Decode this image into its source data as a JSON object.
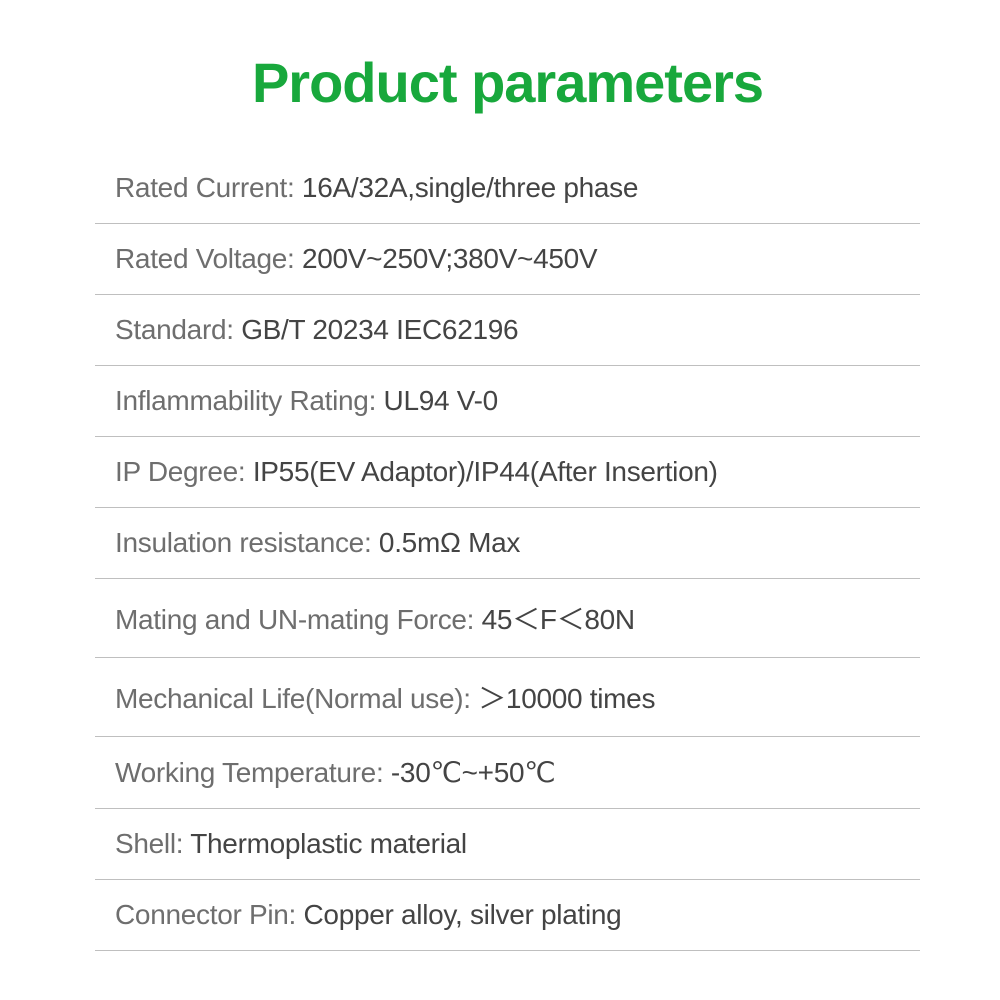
{
  "title": "Product parameters",
  "specs": [
    {
      "label": "Rated Current: ",
      "value": "16A/32A,single/three phase"
    },
    {
      "label": "Rated Voltage: ",
      "value": "200V~250V;380V~450V"
    },
    {
      "label": "Standard: ",
      "value": "GB/T 20234   IEC62196"
    },
    {
      "label": "Inflammability Rating: ",
      "value": "UL94 V-0"
    },
    {
      "label": "IP Degree: ",
      "value": "IP55(EV Adaptor)/IP44(After Insertion)"
    },
    {
      "label": "Insulation resistance: ",
      "value": "0.5mΩ Max"
    },
    {
      "label": "Mating and UN-mating Force: ",
      "value": "45＜F＜80N"
    },
    {
      "label": "Mechanical Life(Normal use): ",
      "value": "＞10000 times"
    },
    {
      "label": "Working Temperature: ",
      "value": "-30℃~+50℃"
    },
    {
      "label": "Shell: ",
      "value": "Thermoplastic material"
    },
    {
      "label": "Connector Pin: ",
      "value": "Copper alloy, silver plating"
    }
  ],
  "colors": {
    "title": "#18a83c",
    "label": "#6e6e6e",
    "value": "#444444",
    "divider": "#bfbfbf",
    "background": "#ffffff"
  },
  "typography": {
    "title_fontsize": 56,
    "row_fontsize": 28
  }
}
